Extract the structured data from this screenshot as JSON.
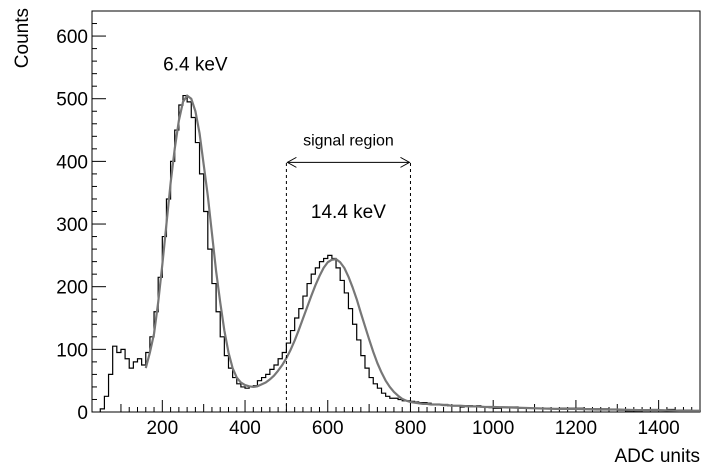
{
  "chart_data": {
    "type": "line",
    "title": "",
    "xlabel": "ADC units",
    "ylabel": "Counts",
    "xlim": [
      30,
      1500
    ],
    "ylim": [
      0,
      640
    ],
    "x_ticks": [
      200,
      400,
      600,
      800,
      1000,
      1200,
      1400
    ],
    "y_ticks": [
      0,
      100,
      200,
      300,
      400,
      500,
      600
    ],
    "grid": false,
    "legend": "none",
    "series": [
      {
        "style": "histogram",
        "color": "#000000",
        "x": [
          50,
          60,
          70,
          80,
          90,
          100,
          110,
          120,
          130,
          140,
          150,
          160,
          170,
          180,
          190,
          200,
          210,
          220,
          230,
          240,
          250,
          260,
          270,
          280,
          290,
          300,
          310,
          320,
          330,
          340,
          350,
          360,
          370,
          380,
          390,
          400,
          410,
          420,
          430,
          440,
          450,
          460,
          470,
          480,
          490,
          500,
          510,
          520,
          530,
          540,
          550,
          560,
          570,
          580,
          590,
          600,
          610,
          620,
          630,
          640,
          650,
          660,
          670,
          680,
          690,
          700,
          710,
          720,
          730,
          740,
          750,
          760,
          770,
          780,
          790,
          800,
          810,
          820,
          830,
          840,
          850,
          860,
          870,
          880,
          890,
          900,
          910,
          920,
          930,
          940,
          950,
          960,
          970,
          980,
          990,
          1000,
          1020,
          1040,
          1060,
          1080,
          1100,
          1120,
          1140,
          1160,
          1180,
          1200,
          1220,
          1240,
          1260,
          1280,
          1300,
          1320,
          1340,
          1360,
          1380,
          1400,
          1420,
          1440,
          1460,
          1480,
          1500
        ],
        "y": [
          5,
          25,
          60,
          105,
          95,
          100,
          85,
          70,
          80,
          85,
          75,
          95,
          120,
          160,
          215,
          280,
          340,
          400,
          450,
          490,
          505,
          495,
          470,
          430,
          380,
          320,
          260,
          205,
          160,
          120,
          90,
          70,
          55,
          45,
          40,
          38,
          40,
          42,
          50,
          55,
          60,
          68,
          75,
          85,
          95,
          110,
          130,
          150,
          165,
          185,
          205,
          220,
          230,
          240,
          245,
          250,
          245,
          230,
          210,
          190,
          165,
          140,
          115,
          90,
          70,
          55,
          45,
          38,
          30,
          25,
          22,
          22,
          20,
          18,
          18,
          17,
          16,
          15,
          15,
          14,
          12,
          12,
          12,
          12,
          10,
          10,
          10,
          8,
          10,
          10,
          9,
          10,
          8,
          8,
          7,
          6,
          8,
          8,
          6,
          6,
          6,
          6,
          5,
          6,
          6,
          6,
          5,
          5,
          5,
          4,
          3,
          2,
          2,
          3,
          4,
          3,
          4,
          3,
          3,
          2,
          0
        ]
      },
      {
        "style": "fit-curve",
        "color": "#777777",
        "x": [
          160,
          170,
          180,
          190,
          200,
          210,
          220,
          230,
          240,
          250,
          260,
          270,
          280,
          290,
          300,
          310,
          320,
          330,
          340,
          350,
          360,
          370,
          380,
          390,
          400,
          410,
          420,
          430,
          440,
          450,
          460,
          470,
          480,
          490,
          500,
          510,
          520,
          530,
          540,
          550,
          560,
          570,
          580,
          590,
          600,
          610,
          620,
          630,
          640,
          650,
          660,
          670,
          680,
          690,
          700,
          710,
          720,
          730,
          740,
          750,
          760,
          770,
          780,
          790,
          800,
          810,
          820,
          830,
          840,
          850,
          860,
          870,
          880,
          890,
          900,
          920,
          940,
          960,
          980,
          1000,
          1050,
          1100,
          1150,
          1200,
          1250,
          1300,
          1350,
          1400,
          1450,
          1500
        ],
        "y": [
          70,
          95,
          125,
          175,
          235,
          300,
          365,
          420,
          465,
          495,
          505,
          500,
          480,
          445,
          395,
          345,
          285,
          225,
          175,
          130,
          95,
          70,
          55,
          47,
          43,
          41,
          40,
          41,
          44,
          47,
          52,
          58,
          66,
          75,
          86,
          99,
          114,
          131,
          149,
          167,
          185,
          202,
          217,
          230,
          239,
          243,
          244,
          239,
          230,
          216,
          199,
          180,
          158,
          137,
          116,
          96,
          78,
          63,
          50,
          40,
          32,
          26,
          21,
          18,
          16,
          15,
          14,
          13,
          13,
          12,
          12,
          12,
          11,
          11,
          10,
          10,
          9,
          9,
          8,
          8,
          7,
          6,
          5,
          5,
          4,
          4,
          3,
          3,
          2,
          2
        ]
      }
    ],
    "annotations": [
      {
        "text": "6.4 keV",
        "x": 280,
        "y": 545
      },
      {
        "text": "14.4 keV",
        "x": 650,
        "y": 310
      },
      {
        "text": "signal region",
        "x": 650,
        "y": 425
      }
    ],
    "signal_region": [
      500,
      800
    ]
  }
}
